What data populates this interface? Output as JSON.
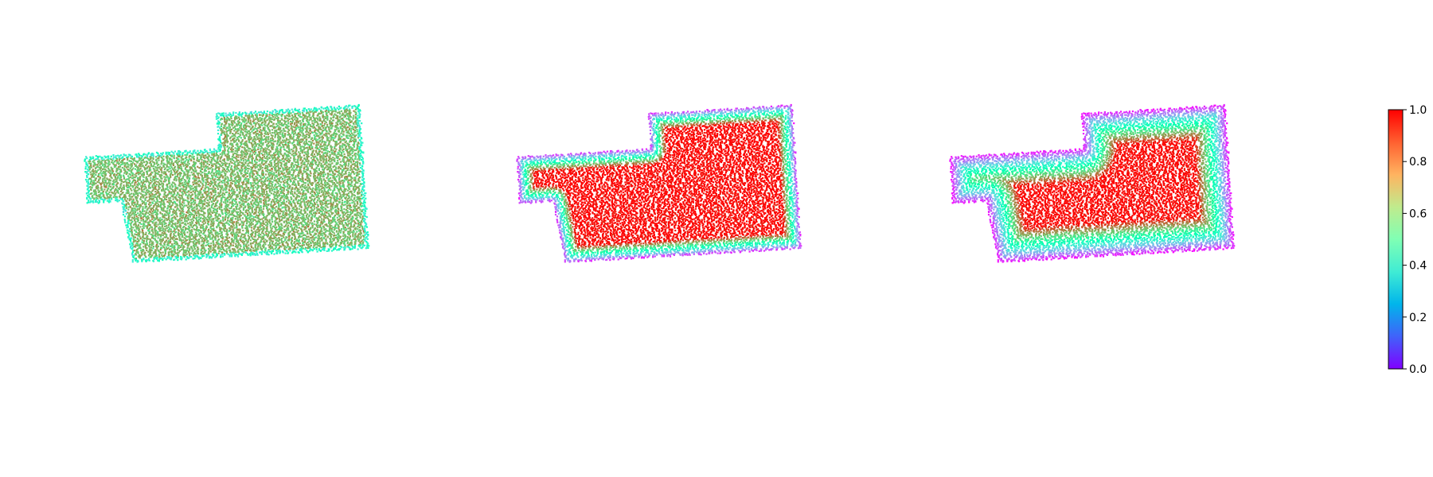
{
  "chart_data": {
    "type": "scatter",
    "panels": [
      {
        "name": "",
        "profile": "interior-uniform"
      },
      {
        "name": "",
        "profile": "boundary-distance-sharp"
      },
      {
        "name": "",
        "profile": "boundary-distance-smooth"
      }
    ],
    "shape_vertices": [
      [
        0.0,
        0.0
      ],
      [
        0.48,
        0.0
      ],
      [
        0.48,
        -0.27
      ],
      [
        1.0,
        -0.27
      ],
      [
        1.0,
        0.83
      ],
      [
        0.15,
        0.83
      ],
      [
        0.12,
        0.36
      ],
      [
        0.0,
        0.36
      ]
    ],
    "colormap": "rainbow",
    "colorbar": {
      "min": 0.0,
      "max": 1.0,
      "ticks": [
        0.0,
        0.2,
        0.4,
        0.6,
        0.8,
        1.0
      ],
      "tick_labels": [
        "0.0",
        "0.2",
        "0.4",
        "0.6",
        "0.8",
        "1.0"
      ],
      "position": "right"
    },
    "axes_visible": false,
    "grid": false
  }
}
